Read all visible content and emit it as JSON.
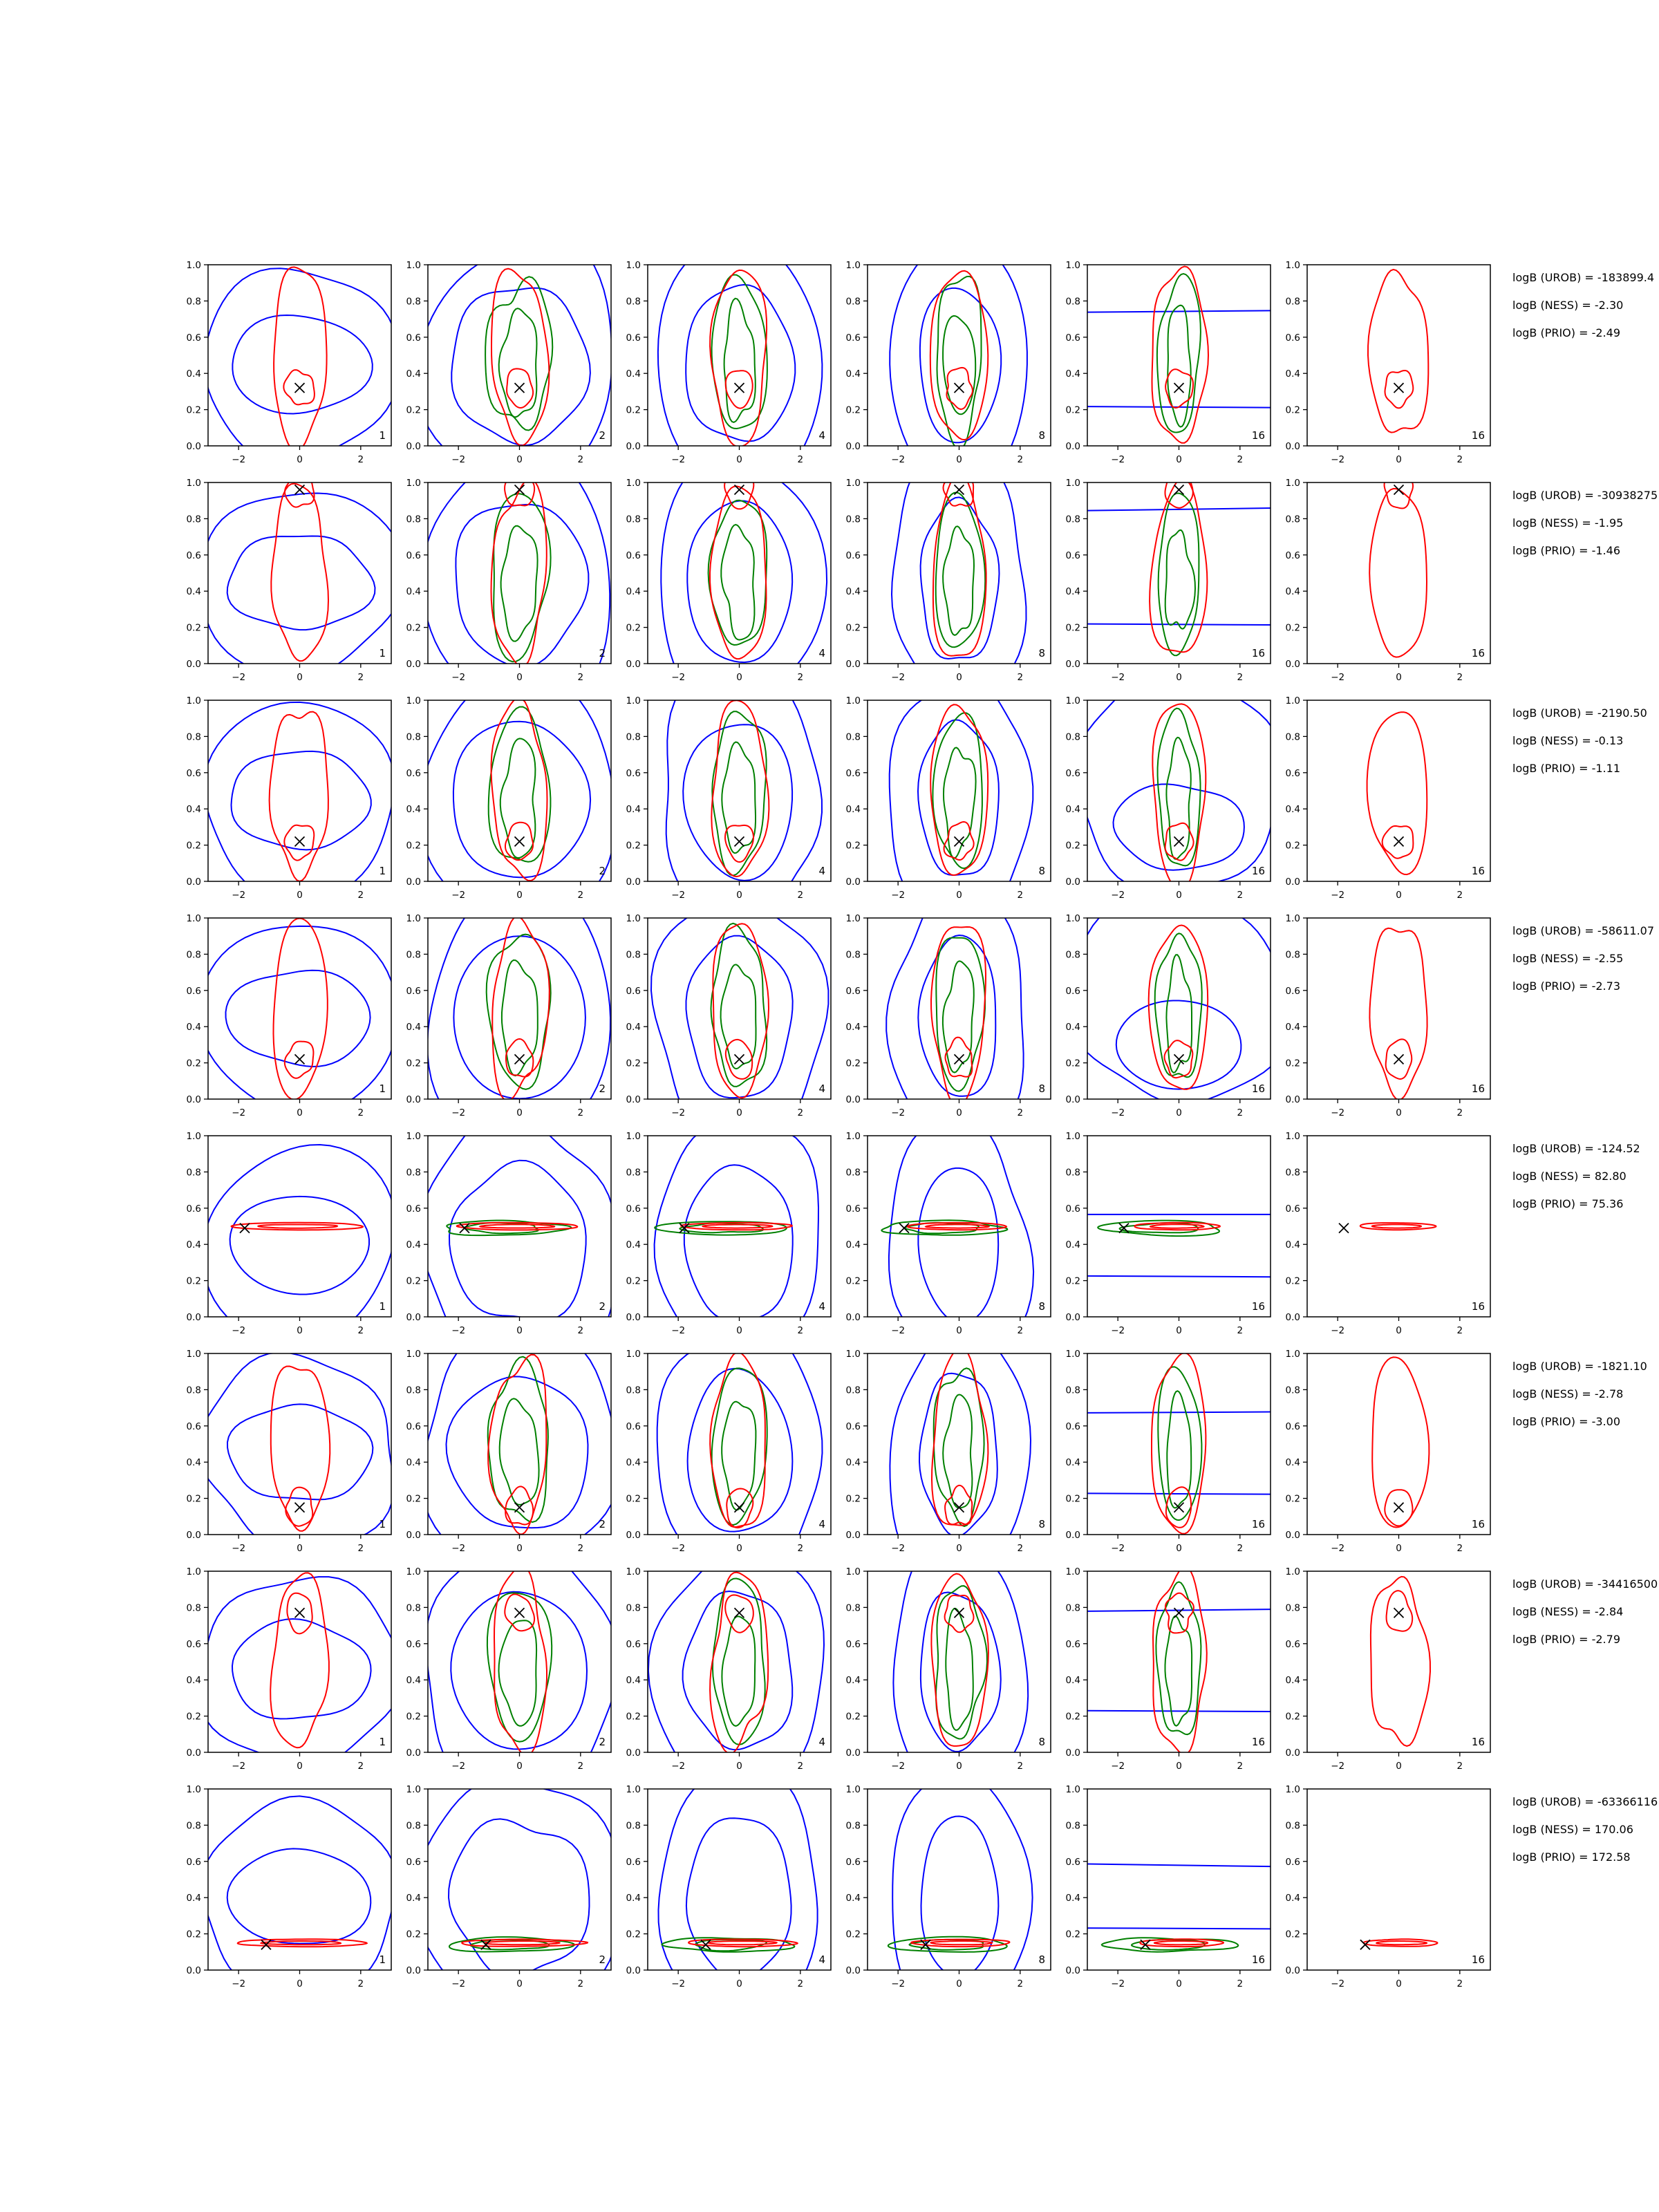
{
  "colors": {
    "prior": "#0000ff",
    "model_a": "#008000",
    "model_b": "#ff0000",
    "truth_marker": "#000000"
  },
  "chart_data": {
    "type": "contour-grid",
    "rows": 8,
    "cols": 6,
    "xlim": [
      -3,
      3
    ],
    "ylim": [
      0,
      1
    ],
    "x_ticks": [
      "−2",
      "0",
      "2"
    ],
    "y_ticks": [
      "0.0",
      "0.2",
      "0.4",
      "0.6",
      "0.8",
      "1.0"
    ],
    "panel_labels": [
      "1",
      "2",
      "4",
      "8",
      "16",
      "16"
    ],
    "series_colors": [
      "blue",
      "green",
      "red"
    ],
    "truth_marker": "x",
    "grid": false,
    "truth": [
      {
        "x": 0.0,
        "y": 0.32
      },
      {
        "x": 0.0,
        "y": 0.96
      },
      {
        "x": 0.0,
        "y": 0.22
      },
      {
        "x": 0.0,
        "y": 0.22
      },
      {
        "x": -1.8,
        "y": 0.49
      },
      {
        "x": 0.0,
        "y": 0.15
      },
      {
        "x": 0.0,
        "y": 0.77
      },
      {
        "x": -1.1,
        "y": 0.14
      }
    ],
    "row_annotations": [
      [
        "logB (UROB) = -183899.4",
        "logB (NESS) = -2.30",
        "logB (PRIO) = -2.49"
      ],
      [
        "logB (UROB) = -30938275",
        "logB (NESS) = -1.95",
        "logB (PRIO) = -1.46"
      ],
      [
        "logB (UROB) = -2190.50",
        "logB (NESS) = -0.13",
        "logB (PRIO) = -1.11"
      ],
      [
        "logB (UROB) = -58611.07",
        "logB (NESS) = -2.55",
        "logB (PRIO) = -2.73"
      ],
      [
        "logB (UROB) = -124.52",
        "logB (NESS) = 82.80",
        "logB (PRIO) = 75.36"
      ],
      [
        "logB (UROB) = -1821.10",
        "logB (NESS) = -2.78",
        "logB (PRIO) = -3.00"
      ],
      [
        "logB (UROB) = -34416500",
        "logB (NESS) = -2.84",
        "logB (PRIO) = -2.79"
      ],
      [
        "logB (UROB) = -63366116",
        "logB (NESS) = 170.06",
        "logB (PRIO) = 172.58"
      ]
    ]
  }
}
